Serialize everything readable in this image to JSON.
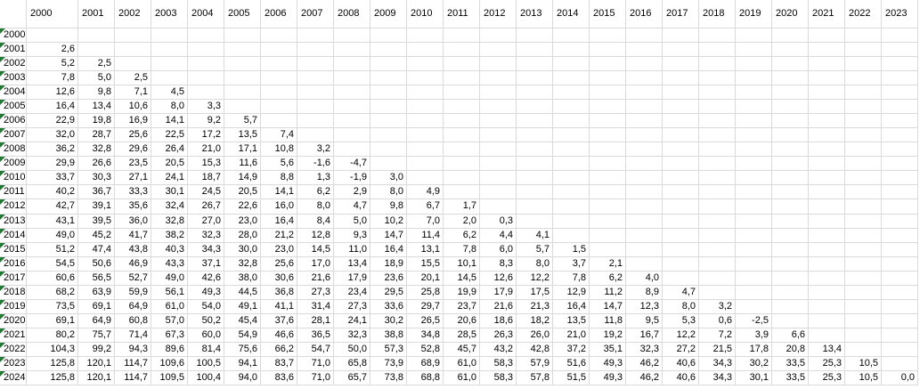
{
  "columns": [
    "2000",
    "2001",
    "2002",
    "2003",
    "2004",
    "2005",
    "2006",
    "2007",
    "2008",
    "2009",
    "2010",
    "2011",
    "2012",
    "2013",
    "2014",
    "2015",
    "2016",
    "2017",
    "2018",
    "2019",
    "2020",
    "2021",
    "2022",
    "2023"
  ],
  "rows": [
    {
      "label": "2000",
      "cells": []
    },
    {
      "label": "2001",
      "cells": [
        "2,6"
      ]
    },
    {
      "label": "2002",
      "cells": [
        "5,2",
        "2,5"
      ]
    },
    {
      "label": "2003",
      "cells": [
        "7,8",
        "5,0",
        "2,5"
      ]
    },
    {
      "label": "2004",
      "cells": [
        "12,6",
        "9,8",
        "7,1",
        "4,5"
      ]
    },
    {
      "label": "2005",
      "cells": [
        "16,4",
        "13,4",
        "10,6",
        "8,0",
        "3,3"
      ]
    },
    {
      "label": "2006",
      "cells": [
        "22,9",
        "19,8",
        "16,9",
        "14,1",
        "9,2",
        "5,7"
      ]
    },
    {
      "label": "2007",
      "cells": [
        "32,0",
        "28,7",
        "25,6",
        "22,5",
        "17,2",
        "13,5",
        "7,4"
      ]
    },
    {
      "label": "2008",
      "cells": [
        "36,2",
        "32,8",
        "29,6",
        "26,4",
        "21,0",
        "17,1",
        "10,8",
        "3,2"
      ]
    },
    {
      "label": "2009",
      "cells": [
        "29,9",
        "26,6",
        "23,5",
        "20,5",
        "15,3",
        "11,6",
        "5,6",
        "-1,6",
        "-4,7"
      ]
    },
    {
      "label": "2010",
      "cells": [
        "33,7",
        "30,3",
        "27,1",
        "24,1",
        "18,7",
        "14,9",
        "8,8",
        "1,3",
        "-1,9",
        "3,0"
      ]
    },
    {
      "label": "2011",
      "cells": [
        "40,2",
        "36,7",
        "33,3",
        "30,1",
        "24,5",
        "20,5",
        "14,1",
        "6,2",
        "2,9",
        "8,0",
        "4,9"
      ]
    },
    {
      "label": "2012",
      "cells": [
        "42,7",
        "39,1",
        "35,6",
        "32,4",
        "26,7",
        "22,6",
        "16,0",
        "8,0",
        "4,7",
        "9,8",
        "6,7",
        "1,7"
      ]
    },
    {
      "label": "2013",
      "cells": [
        "43,1",
        "39,5",
        "36,0",
        "32,8",
        "27,0",
        "23,0",
        "16,4",
        "8,4",
        "5,0",
        "10,2",
        "7,0",
        "2,0",
        "0,3"
      ]
    },
    {
      "label": "2014",
      "cells": [
        "49,0",
        "45,2",
        "41,7",
        "38,2",
        "32,3",
        "28,0",
        "21,2",
        "12,8",
        "9,3",
        "14,7",
        "11,4",
        "6,2",
        "4,4",
        "4,1"
      ]
    },
    {
      "label": "2015",
      "cells": [
        "51,2",
        "47,4",
        "43,8",
        "40,3",
        "34,3",
        "30,0",
        "23,0",
        "14,5",
        "11,0",
        "16,4",
        "13,1",
        "7,8",
        "6,0",
        "5,7",
        "1,5"
      ]
    },
    {
      "label": "2016",
      "cells": [
        "54,5",
        "50,6",
        "46,9",
        "43,3",
        "37,1",
        "32,8",
        "25,6",
        "17,0",
        "13,4",
        "18,9",
        "15,5",
        "10,1",
        "8,3",
        "8,0",
        "3,7",
        "2,1"
      ]
    },
    {
      "label": "2017",
      "cells": [
        "60,6",
        "56,5",
        "52,7",
        "49,0",
        "42,6",
        "38,0",
        "30,6",
        "21,6",
        "17,9",
        "23,6",
        "20,1",
        "14,5",
        "12,6",
        "12,2",
        "7,8",
        "6,2",
        "4,0"
      ]
    },
    {
      "label": "2018",
      "cells": [
        "68,2",
        "63,9",
        "59,9",
        "56,1",
        "49,3",
        "44,5",
        "36,8",
        "27,3",
        "23,4",
        "29,5",
        "25,8",
        "19,9",
        "17,9",
        "17,5",
        "12,9",
        "11,2",
        "8,9",
        "4,7"
      ]
    },
    {
      "label": "2019",
      "cells": [
        "73,5",
        "69,1",
        "64,9",
        "61,0",
        "54,0",
        "49,1",
        "41,1",
        "31,4",
        "27,3",
        "33,6",
        "29,7",
        "23,7",
        "21,6",
        "21,3",
        "16,4",
        "14,7",
        "12,3",
        "8,0",
        "3,2"
      ]
    },
    {
      "label": "2020",
      "cells": [
        "69,1",
        "64,9",
        "60,8",
        "57,0",
        "50,2",
        "45,4",
        "37,6",
        "28,1",
        "24,1",
        "30,2",
        "26,5",
        "20,6",
        "18,6",
        "18,2",
        "13,5",
        "11,8",
        "9,5",
        "5,3",
        "0,6",
        "-2,5"
      ]
    },
    {
      "label": "2021",
      "cells": [
        "80,2",
        "75,7",
        "71,4",
        "67,3",
        "60,0",
        "54,9",
        "46,6",
        "36,5",
        "32,3",
        "38,8",
        "34,8",
        "28,5",
        "26,3",
        "26,0",
        "21,0",
        "19,2",
        "16,7",
        "12,2",
        "7,2",
        "3,9",
        "6,6"
      ]
    },
    {
      "label": "2022",
      "cells": [
        "104,3",
        "99,2",
        "94,3",
        "89,6",
        "81,4",
        "75,6",
        "66,2",
        "54,7",
        "50,0",
        "57,3",
        "52,8",
        "45,7",
        "43,2",
        "42,8",
        "37,2",
        "35,1",
        "32,3",
        "27,2",
        "21,5",
        "17,8",
        "20,8",
        "13,4"
      ]
    },
    {
      "label": "2023",
      "cells": [
        "125,8",
        "120,1",
        "114,7",
        "109,6",
        "100,5",
        "94,1",
        "83,7",
        "71,0",
        "65,8",
        "73,9",
        "68,9",
        "61,0",
        "58,3",
        "57,9",
        "51,6",
        "49,3",
        "46,2",
        "40,6",
        "34,3",
        "30,2",
        "33,5",
        "25,3",
        "10,5"
      ]
    },
    {
      "label": "2024",
      "cells": [
        "125,8",
        "120,1",
        "114,7",
        "109,5",
        "100,4",
        "94,0",
        "83,6",
        "71,0",
        "65,7",
        "73,8",
        "68,8",
        "61,0",
        "58,3",
        "57,8",
        "51,5",
        "49,3",
        "46,2",
        "40,6",
        "34,3",
        "30,1",
        "33,5",
        "25,3",
        "10,5",
        "0,0"
      ]
    }
  ]
}
